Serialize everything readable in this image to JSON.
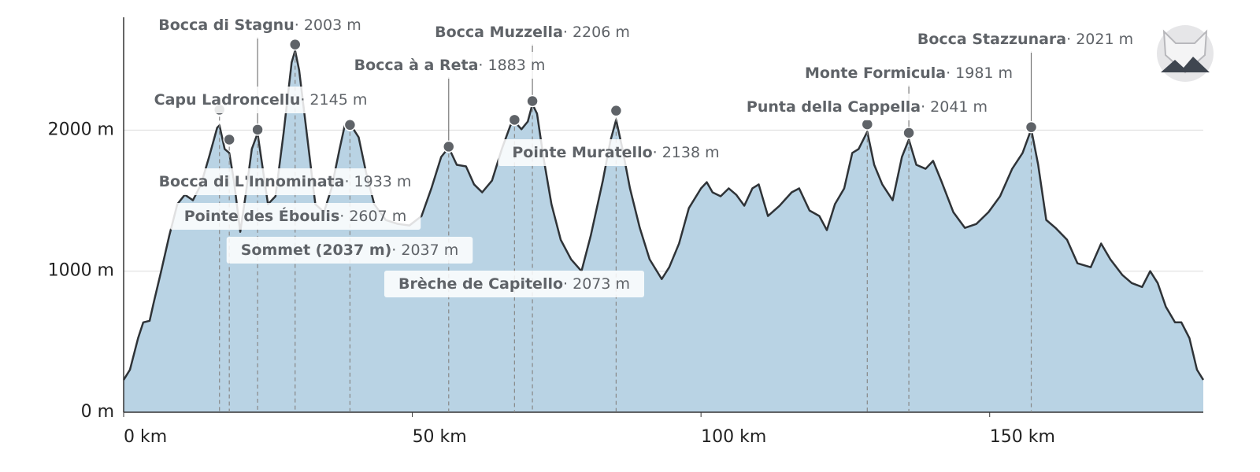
{
  "chart_data": {
    "type": "area",
    "color": "#b9d3e4",
    "line_color": "#2f3337",
    "grid": true,
    "xlim": [
      0,
      187
    ],
    "ylim": [
      0,
      2800
    ],
    "xticks": [
      {
        "value": 0,
        "label": "0 km"
      },
      {
        "value": 50,
        "label": "50 km"
      },
      {
        "value": 100,
        "label": "100 km"
      },
      {
        "value": 150,
        "label": "150 km"
      }
    ],
    "yticks": [
      {
        "value": 0,
        "label": "0 m"
      },
      {
        "value": 1000,
        "label": "1000 m"
      },
      {
        "value": 2000,
        "label": "2000 m"
      }
    ],
    "x": [
      0,
      1.1,
      2.5,
      3.4,
      4.5,
      5.2,
      6.5,
      7.9,
      9.3,
      10.6,
      12.0,
      13.4,
      14.8,
      16.2,
      16.6,
      17.5,
      18.3,
      19.1,
      20.2,
      21.1,
      22.2,
      23.2,
      24.0,
      25.0,
      26.3,
      27.7,
      29.1,
      29.7,
      30.4,
      31.8,
      33.2,
      34.7,
      36.0,
      37.4,
      38.3,
      39.2,
      40.7,
      42.0,
      43.4,
      45.4,
      47.5,
      49.5,
      51.6,
      53.3,
      55.0,
      56.3,
      57.7,
      59.3,
      60.7,
      62.1,
      63.8,
      65.5,
      67.0,
      67.7,
      68.9,
      70.0,
      70.8,
      71.6,
      72.7,
      74.1,
      75.7,
      77.5,
      79.3,
      80.9,
      83.0,
      84.3,
      85.3,
      86.4,
      87.7,
      89.4,
      91.1,
      93.2,
      94.5,
      96.2,
      97.9,
      100.0,
      101.0,
      102.0,
      103.4,
      104.8,
      106.1,
      107.5,
      108.9,
      110.0,
      111.6,
      113.6,
      115.7,
      117.0,
      118.8,
      120.5,
      121.8,
      123.2,
      124.8,
      126.2,
      127.3,
      128.8,
      130.0,
      131.4,
      133.2,
      134.8,
      136.0,
      137.3,
      138.9,
      140.2,
      141.6,
      143.7,
      145.7,
      147.7,
      149.8,
      151.8,
      153.9,
      155.7,
      157.2,
      158.4,
      159.8,
      161.4,
      163.4,
      165.2,
      167.5,
      169.3,
      170.9,
      173.0,
      174.6,
      176.4,
      177.8,
      179.1,
      180.5,
      182.1,
      183.2,
      184.6,
      185.9,
      187.0
    ],
    "values": [
      229,
      302,
      525,
      637,
      648,
      776,
      1000,
      1251,
      1475,
      1542,
      1503,
      1615,
      1810,
      2017,
      2034,
      1866,
      1838,
      1642,
      1279,
      1531,
      1866,
      1978,
      1754,
      1475,
      1531,
      1978,
      2480,
      2564,
      2425,
      1950,
      1475,
      1419,
      1587,
      1866,
      2034,
      2045,
      1950,
      1698,
      1475,
      1363,
      1335,
      1324,
      1391,
      1587,
      1810,
      1877,
      1754,
      1743,
      1615,
      1559,
      1642,
      1866,
      2034,
      2061,
      2006,
      2061,
      2184,
      2117,
      1810,
      1475,
      1223,
      1084,
      1000,
      1251,
      1642,
      1922,
      2073,
      1866,
      1587,
      1307,
      1084,
      944,
      1028,
      1196,
      1447,
      1587,
      1631,
      1559,
      1531,
      1587,
      1542,
      1464,
      1587,
      1615,
      1391,
      1464,
      1559,
      1587,
      1430,
      1391,
      1291,
      1475,
      1587,
      1838,
      1866,
      1989,
      1754,
      1615,
      1503,
      1810,
      1933,
      1754,
      1726,
      1782,
      1642,
      1419,
      1307,
      1335,
      1419,
      1531,
      1726,
      1838,
      2006,
      1754,
      1363,
      1307,
      1223,
      1056,
      1028,
      1196,
      1084,
      972,
      916,
      888,
      1000,
      916,
      749,
      637,
      637,
      525,
      302,
      229
    ],
    "peaks": {
      "names": [
        "Capu Ladroncellu",
        "Bocca di L'Innominata",
        "Bocca di Stagnu",
        "Pointe des Éboulis",
        "Sommet (2037 m)",
        "Bocca à a Reta",
        "Brèche de Capitello",
        "Bocca Muzzella",
        "Pointe Muratello",
        "Punta della Cappella",
        "Monte Formicula",
        "Bocca Stazzunara"
      ],
      "x": [
        16.6,
        18.3,
        23.2,
        29.7,
        39.2,
        56.3,
        67.7,
        70.8,
        85.3,
        128.8,
        136.0,
        157.2
      ],
      "values": [
        2145,
        1933,
        2003,
        2607,
        2037,
        1883,
        2073,
        2206,
        2138,
        2041,
        1981,
        2021
      ],
      "value_labels": [
        "· 2145 m",
        "· 1933 m",
        "· 2003 m",
        "· 2607 m",
        "· 2037 m",
        "· 1883 m",
        "· 2073 m",
        "· 2206 m",
        "· 2138 m",
        "· 2041 m",
        "· 1981 m",
        "· 2021 m"
      ],
      "color": "#5f6368"
    }
  }
}
